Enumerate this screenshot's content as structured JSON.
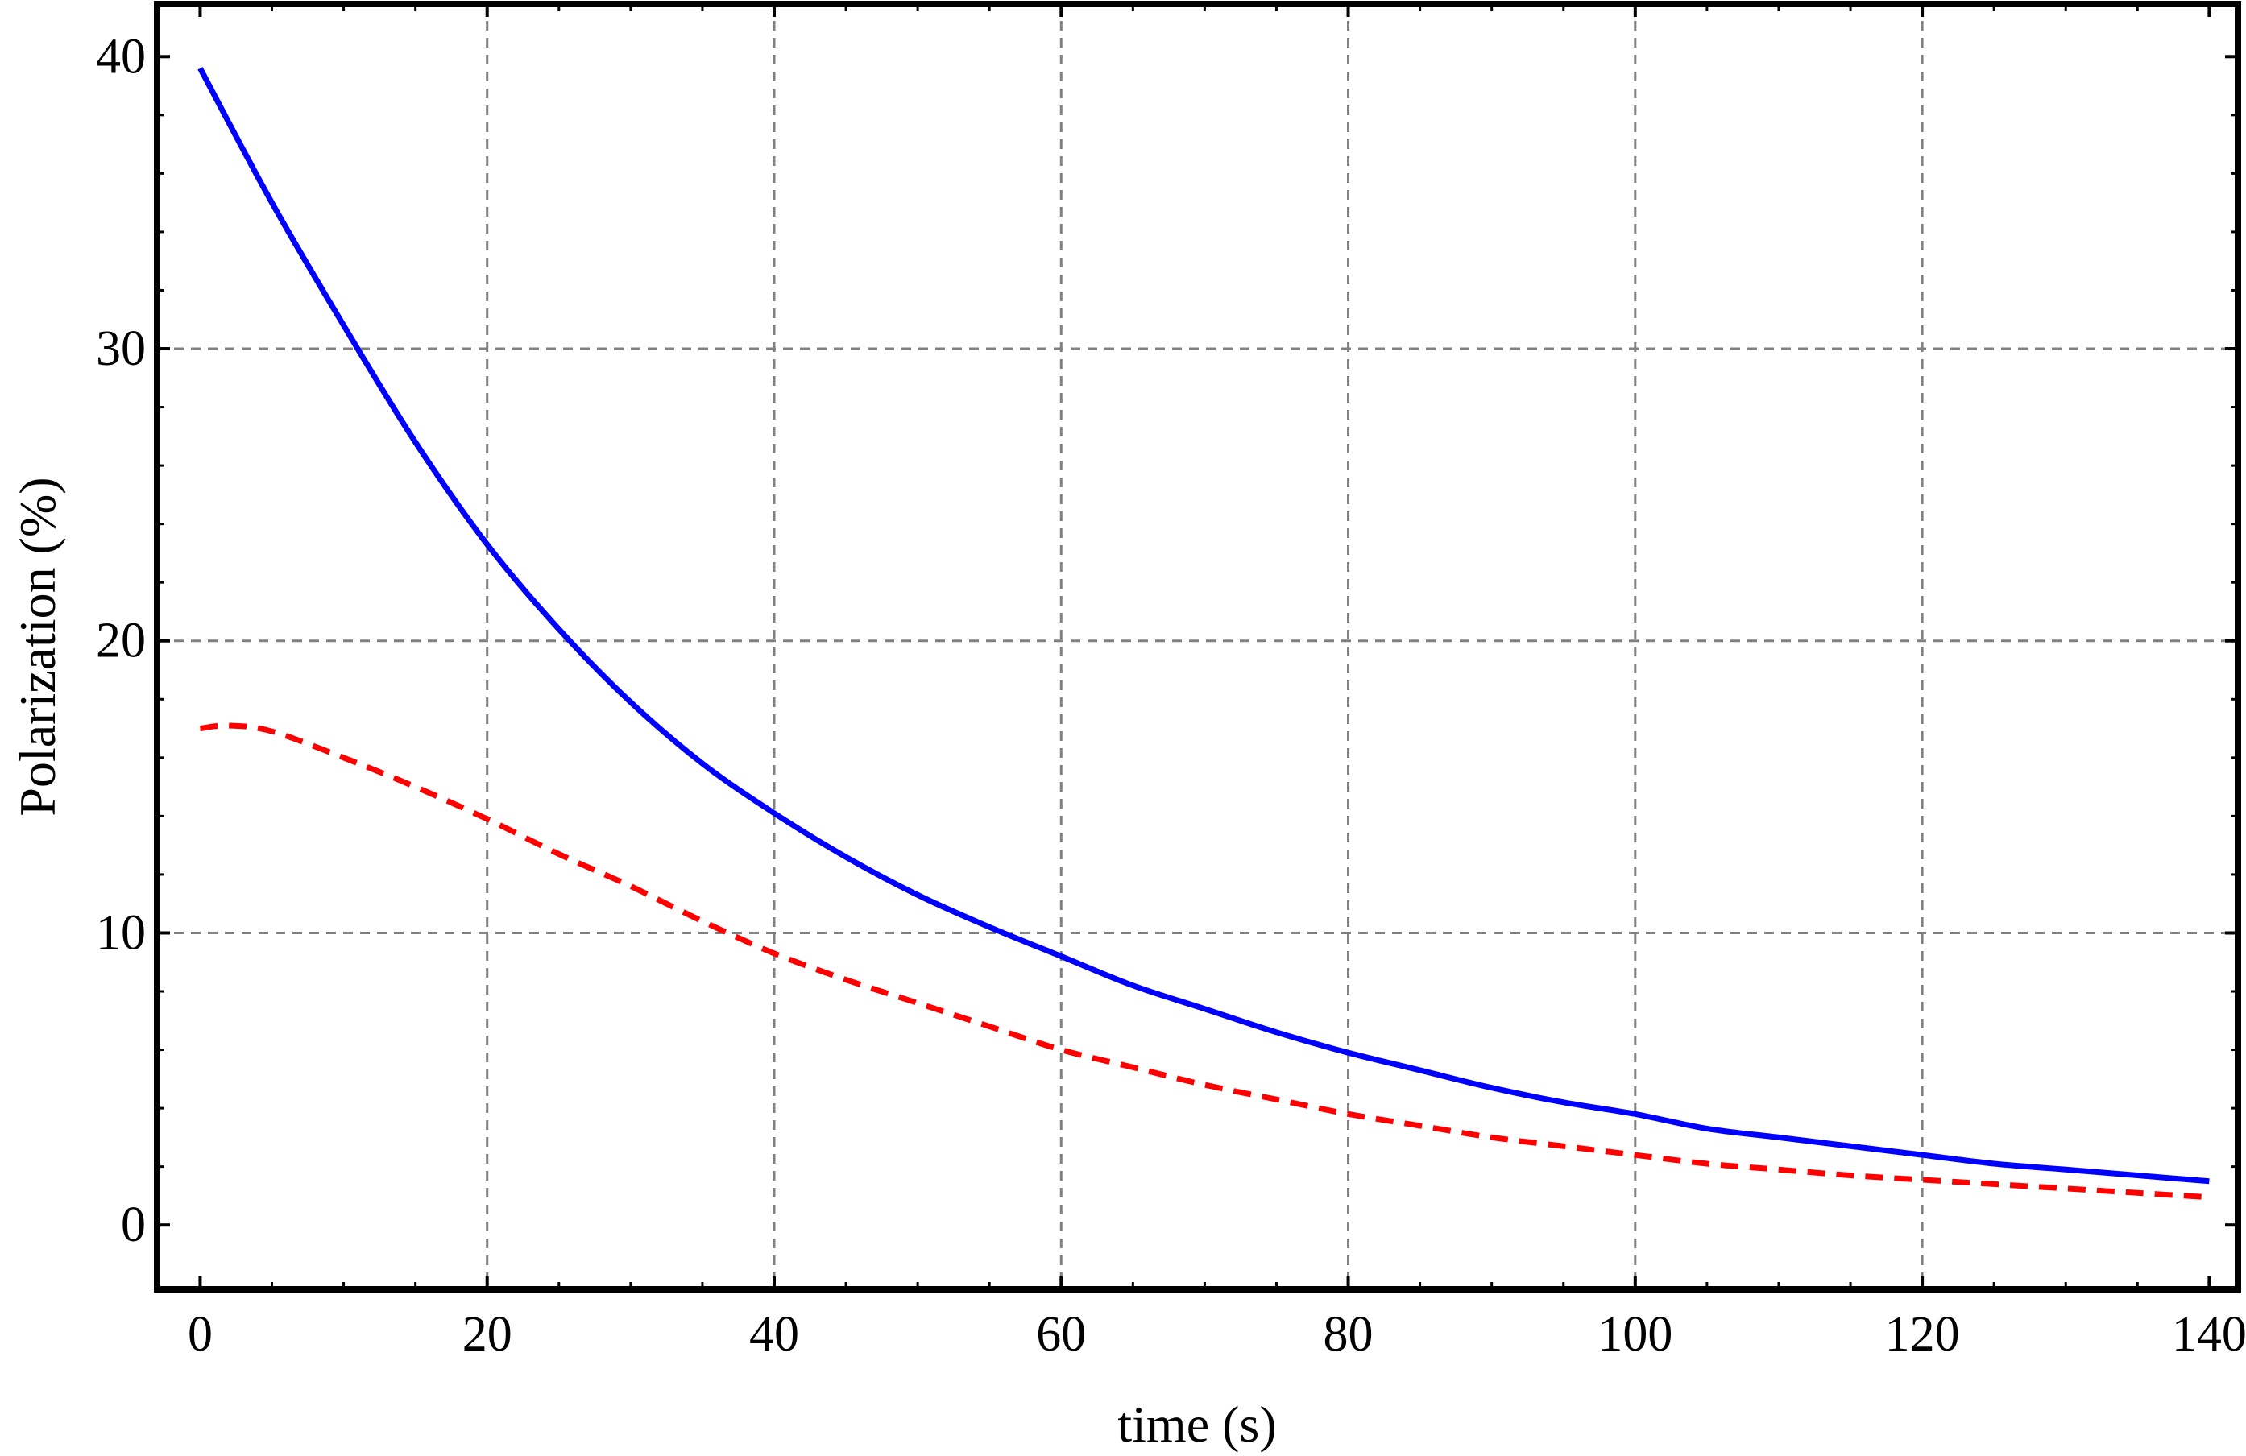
{
  "chart_data": {
    "type": "line",
    "title": "",
    "xlabel": "time (s)",
    "ylabel": "Polarization (%)",
    "xlim": [
      -3,
      142
    ],
    "ylim": [
      -2.2,
      41.8
    ],
    "xticks": [
      0,
      20,
      40,
      60,
      80,
      100,
      120,
      140
    ],
    "yticks": [
      0,
      10,
      20,
      30,
      40
    ],
    "xtick_labels": [
      "0",
      "20",
      "40",
      "60",
      "80",
      "100",
      "120",
      "140"
    ],
    "ytick_labels": [
      "0",
      "10",
      "20",
      "30",
      "40"
    ],
    "grid": true,
    "series": [
      {
        "name": "solid",
        "color": "#0000ff",
        "style": "solid",
        "x": [
          0,
          5,
          10,
          15,
          20,
          25,
          30,
          35,
          40,
          45,
          50,
          55,
          60,
          65,
          70,
          75,
          80,
          85,
          90,
          95,
          100,
          105,
          110,
          115,
          120,
          125,
          130,
          135,
          140
        ],
        "y": [
          39.6,
          35.0,
          30.8,
          26.8,
          23.3,
          20.4,
          17.9,
          15.8,
          14.1,
          12.6,
          11.3,
          10.2,
          9.2,
          8.2,
          7.4,
          6.6,
          5.9,
          5.3,
          4.7,
          4.2,
          3.8,
          3.3,
          3.0,
          2.7,
          2.4,
          2.1,
          1.9,
          1.7,
          1.5
        ]
      },
      {
        "name": "dashed",
        "color": "#ff0000",
        "style": "dashed",
        "x": [
          0,
          2,
          5,
          10,
          15,
          20,
          25,
          30,
          35,
          40,
          45,
          50,
          55,
          60,
          65,
          70,
          75,
          80,
          85,
          90,
          95,
          100,
          105,
          110,
          115,
          120,
          125,
          130,
          135,
          140
        ],
        "y": [
          17.0,
          17.1,
          16.9,
          16.0,
          15.0,
          13.9,
          12.7,
          11.6,
          10.4,
          9.3,
          8.4,
          7.6,
          6.8,
          6.0,
          5.4,
          4.8,
          4.3,
          3.8,
          3.4,
          3.0,
          2.7,
          2.4,
          2.1,
          1.9,
          1.7,
          1.55,
          1.4,
          1.25,
          1.1,
          0.95
        ]
      }
    ]
  }
}
